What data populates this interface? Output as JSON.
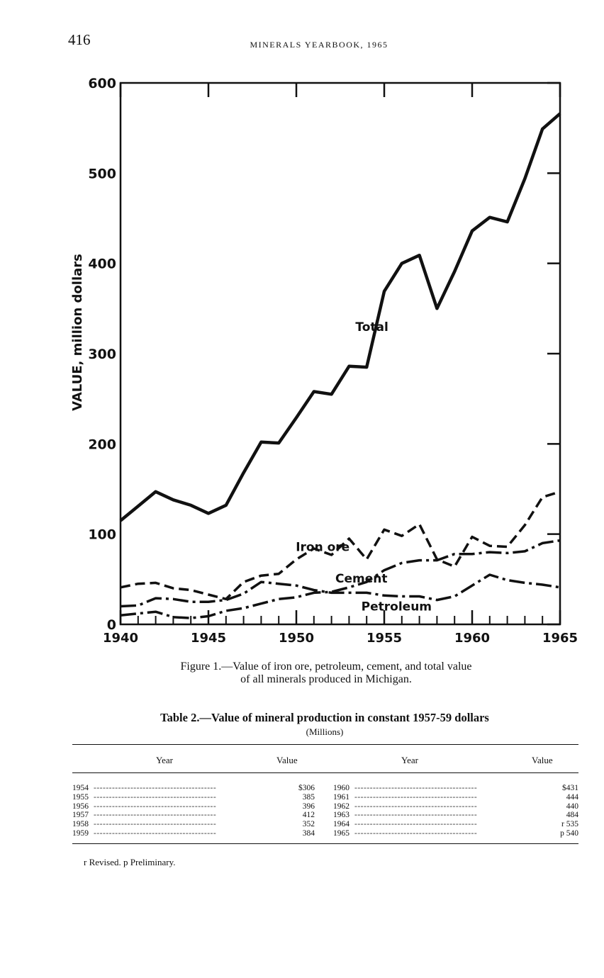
{
  "header": {
    "page_number": "416",
    "running_head": "MINERALS YEARBOOK, 1965"
  },
  "chart_data": {
    "type": "line",
    "ylabel": "VALUE, million dollars",
    "xlabel": "",
    "x_ticks": [
      "1940",
      "1945",
      "1950",
      "1955",
      "1960",
      "1965"
    ],
    "y_ticks": [
      "0",
      "100",
      "200",
      "300",
      "400",
      "500",
      "600"
    ],
    "xlim": [
      1940,
      1965
    ],
    "ylim": [
      0,
      600
    ],
    "x": [
      1940,
      1941,
      1942,
      1943,
      1944,
      1945,
      1946,
      1947,
      1948,
      1949,
      1950,
      1951,
      1952,
      1953,
      1954,
      1955,
      1956,
      1957,
      1958,
      1959,
      1960,
      1961,
      1962,
      1963,
      1964,
      1965
    ],
    "series": [
      {
        "name": "Total",
        "style": "solid-thick",
        "values": [
          115,
          131,
          147,
          138,
          132,
          123,
          132,
          168,
          202,
          201,
          229,
          258,
          255,
          286,
          285,
          369,
          400,
          409,
          350,
          391,
          436,
          451,
          446,
          494,
          549,
          566
        ]
      },
      {
        "name": "Iron ore",
        "style": "dashed",
        "values": [
          41,
          45,
          46,
          40,
          38,
          33,
          28,
          47,
          54,
          56,
          72,
          84,
          77,
          95,
          72,
          105,
          98,
          111,
          72,
          64,
          97,
          87,
          86,
          110,
          141,
          147
        ]
      },
      {
        "name": "Cement",
        "style": "dash-dot",
        "values": [
          20,
          21,
          29,
          28,
          25,
          25,
          27,
          34,
          47,
          45,
          43,
          38,
          35,
          35,
          35,
          32,
          31,
          31,
          27,
          31,
          43,
          55,
          49,
          46,
          44,
          41
        ]
      },
      {
        "name": "Petroleum",
        "style": "dash-dot",
        "values": [
          10,
          12,
          14,
          8,
          7,
          9,
          15,
          18,
          23,
          28,
          30,
          35,
          36,
          41,
          47,
          60,
          68,
          71,
          71,
          78,
          78,
          80,
          79,
          81,
          90,
          93
        ]
      }
    ],
    "annotations": [
      "Total",
      "Iron ore",
      "Cement",
      "Petroleum"
    ]
  },
  "figure": {
    "caption_line1": "Figure 1.—Value of iron ore, petroleum, cement, and total value",
    "caption_line2": "of all minerals produced in Michigan."
  },
  "table": {
    "title": "Table 2.—Value of mineral production in constant 1957-59 dollars",
    "subtitle": "(Millions)",
    "headers": [
      "Year",
      "Value",
      "Year",
      "Value"
    ],
    "left_rows": [
      {
        "year": "1954",
        "value": "$306"
      },
      {
        "year": "1955",
        "value": "385"
      },
      {
        "year": "1956",
        "value": "396"
      },
      {
        "year": "1957",
        "value": "412"
      },
      {
        "year": "1958",
        "value": "352"
      },
      {
        "year": "1959",
        "value": "384"
      }
    ],
    "right_rows": [
      {
        "year": "1960",
        "value": "$431"
      },
      {
        "year": "1961",
        "value": "444"
      },
      {
        "year": "1962",
        "value": "440"
      },
      {
        "year": "1963",
        "value": "484"
      },
      {
        "year": "1964",
        "value": "r 535"
      },
      {
        "year": "1965",
        "value": "p 540"
      }
    ],
    "footnote": "r Revised.   p Preliminary."
  }
}
